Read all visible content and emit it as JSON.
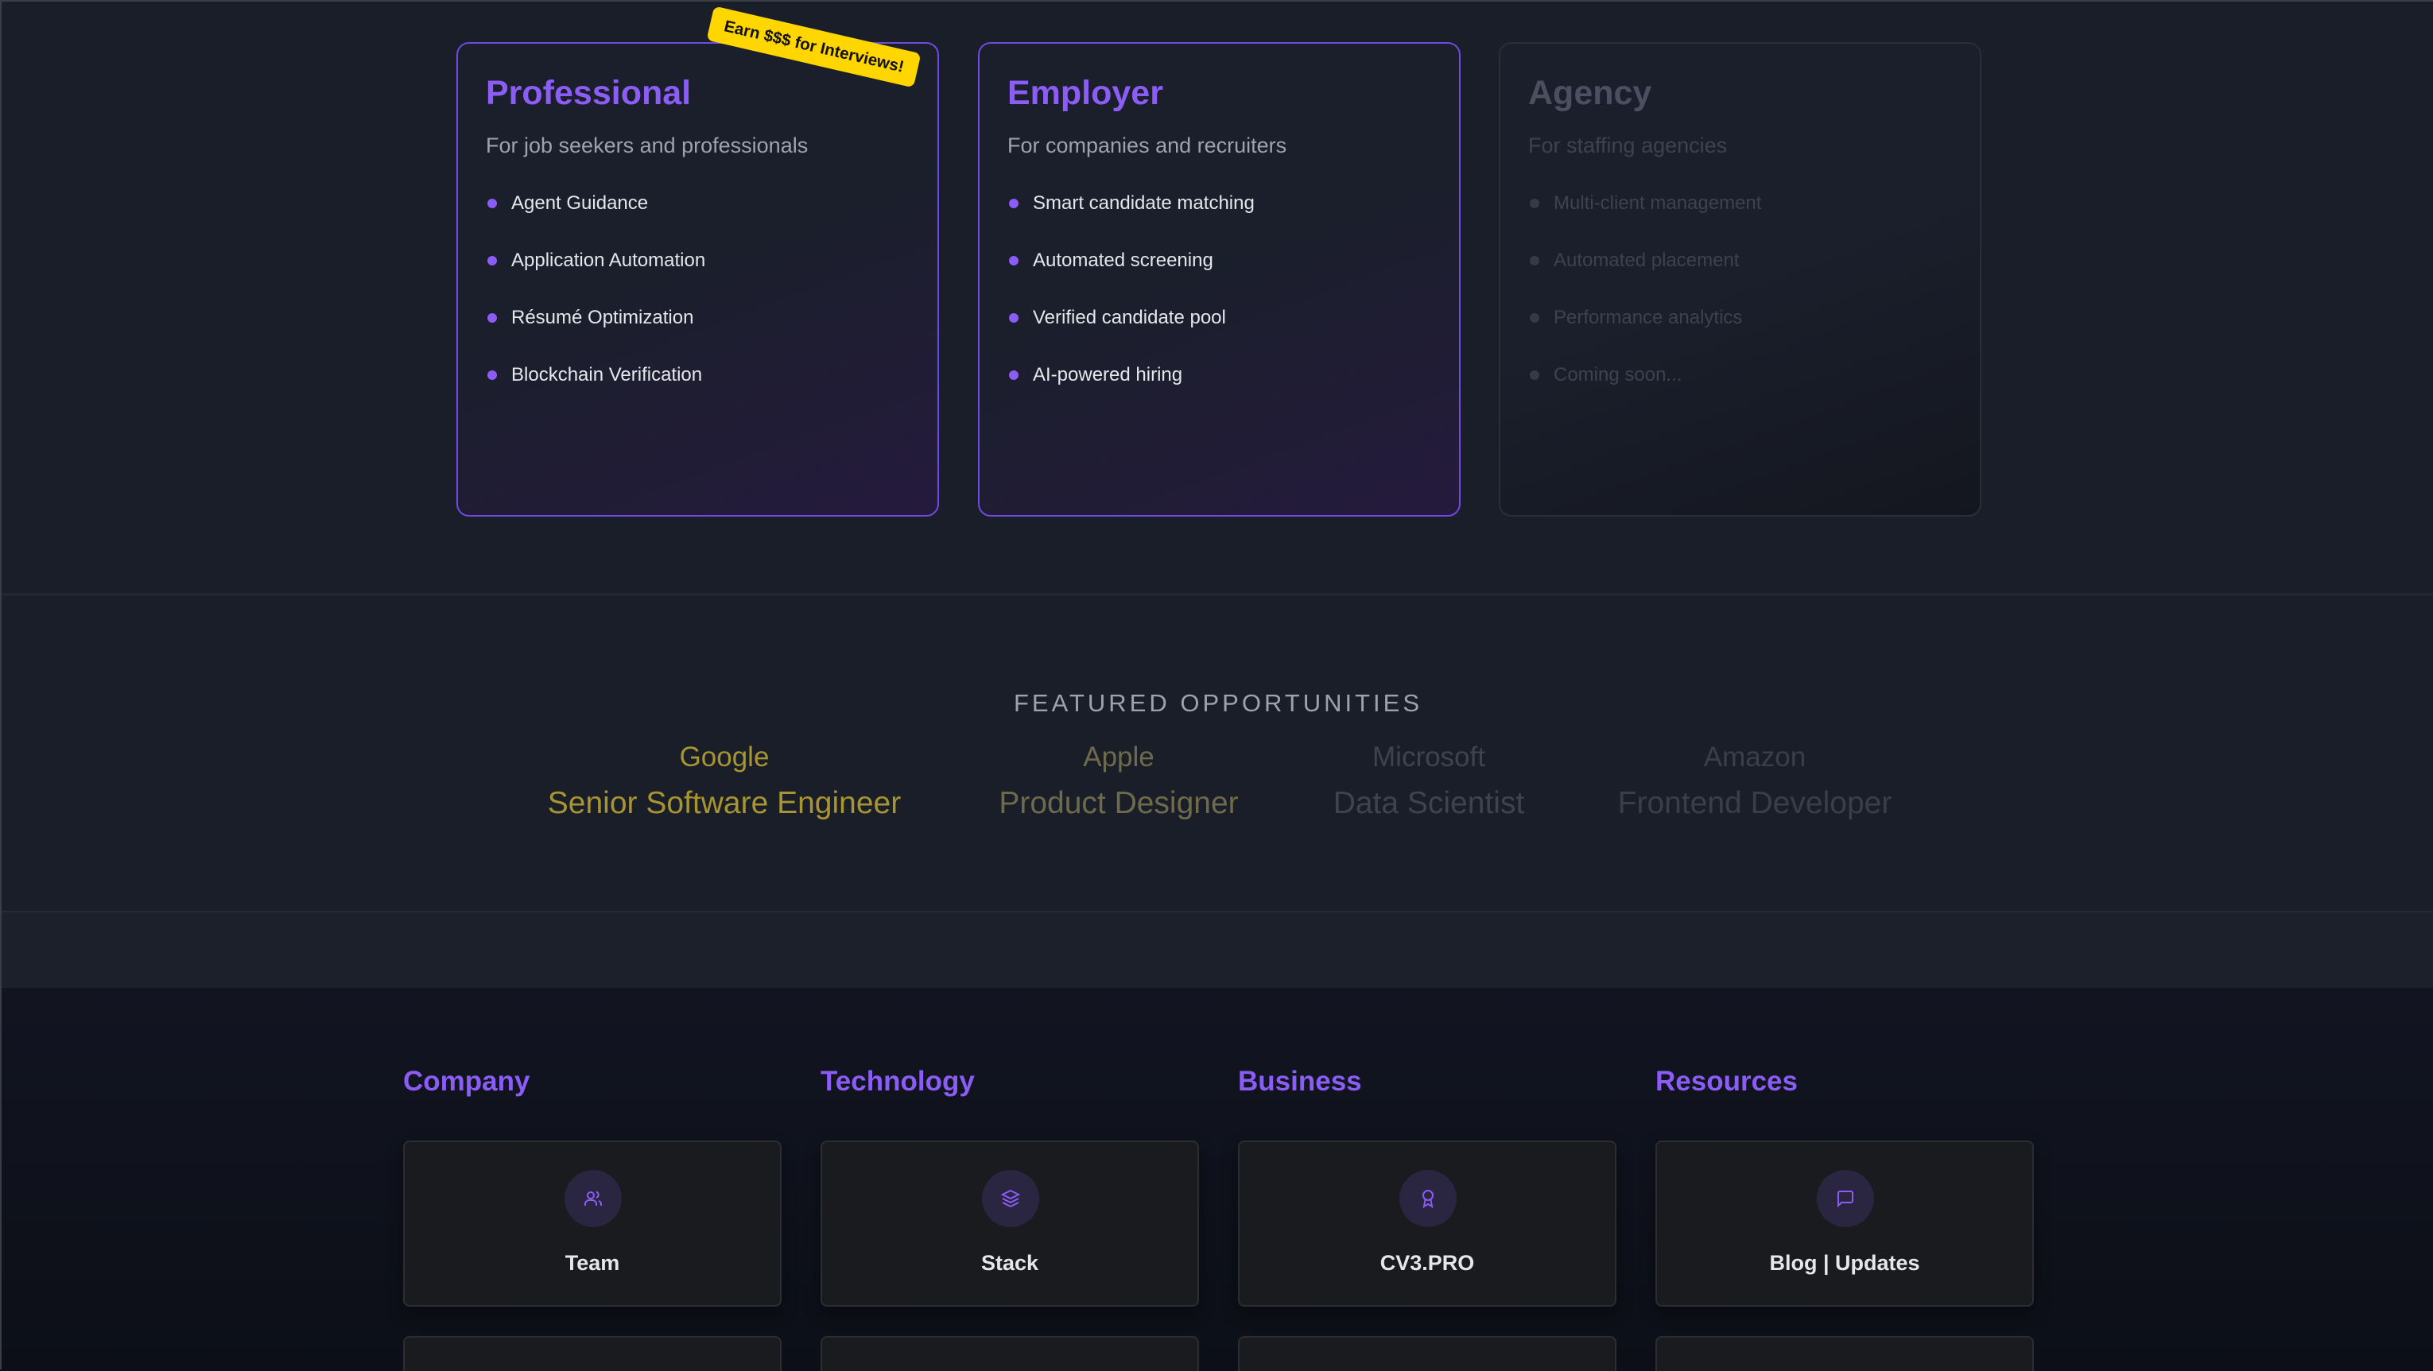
{
  "plans": [
    {
      "title": "Professional",
      "subtitle": "For job seekers and professionals",
      "features": [
        "Agent Guidance",
        "Application Automation",
        "Résumé Optimization",
        "Blockchain Verification"
      ],
      "badge": "Earn $$$ for Interviews!",
      "active": true
    },
    {
      "title": "Employer",
      "subtitle": "For companies and recruiters",
      "features": [
        "Smart candidate matching",
        "Automated screening",
        "Verified candidate pool",
        "AI-powered hiring"
      ],
      "active": true
    },
    {
      "title": "Agency",
      "subtitle": "For staffing agencies",
      "features": [
        "Multi-client management",
        "Automated placement",
        "Performance analytics",
        "Coming soon..."
      ],
      "active": false
    }
  ],
  "featured": {
    "title": "FEATURED OPPORTUNITIES",
    "items": [
      {
        "company": "Google",
        "role": "Senior Software Engineer",
        "color": "#a89430"
      },
      {
        "company": "Apple",
        "role": "Product Designer",
        "color": "#6e6a4c"
      },
      {
        "company": "Microsoft",
        "role": "Data Scientist",
        "color": "#3f4350"
      },
      {
        "company": "Amazon",
        "role": "Frontend Developer",
        "color": "#3a3e4a"
      }
    ]
  },
  "footer": {
    "columns": [
      {
        "heading": "Company",
        "tile": {
          "label": "Team",
          "icon": "users-icon"
        }
      },
      {
        "heading": "Technology",
        "tile": {
          "label": "Stack",
          "icon": "layers-icon"
        }
      },
      {
        "heading": "Business",
        "tile": {
          "label": "CV3.PRO",
          "icon": "award-icon"
        }
      },
      {
        "heading": "Resources",
        "tile": {
          "label": "Blog | Updates",
          "icon": "message-square-icon"
        }
      }
    ]
  },
  "colors": {
    "accent": "#8b5cf6",
    "badge": "#ffd600"
  }
}
